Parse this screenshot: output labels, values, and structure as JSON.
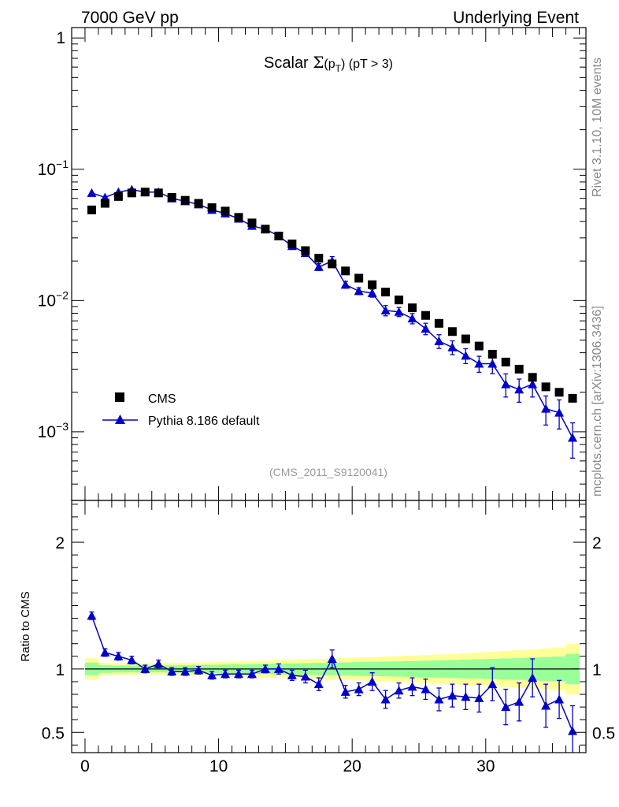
{
  "header": {
    "left": "7000 GeV pp",
    "right": "Underlying Event",
    "side_top": "Rivet 3.1.10,  10M events",
    "side_bottom": "mcplots.cern.ch [arXiv:1306.3436]"
  },
  "chart_data": [
    {
      "type": "scatter",
      "title": "Scalar Σ(p_T) (pT > 3)",
      "title_parts": {
        "main": "Scalar ",
        "sigma": "Σ",
        "open": "(p",
        "sub": "T",
        "close": ")",
        "cut": " (pT >  3)"
      },
      "watermark": "(CMS_2011_S9120041)",
      "yscale": "log",
      "xlim": [
        -1,
        37.5
      ],
      "ylim": [
        0.0003,
        1.2
      ],
      "y_ticks": [
        {
          "v": 1,
          "label": "1"
        },
        {
          "v": 0.1,
          "label": "10",
          "exp": "−1"
        },
        {
          "v": 0.01,
          "label": "10",
          "exp": "−2"
        },
        {
          "v": 0.001,
          "label": "10",
          "exp": "−3"
        }
      ],
      "legend": {
        "position": "bottom-left",
        "entries": [
          "CMS",
          "Pythia 8.186 default"
        ]
      },
      "series": [
        {
          "name": "CMS",
          "color": "#000000",
          "marker": "square",
          "x": [
            0.5,
            1.5,
            2.5,
            3.5,
            4.5,
            5.5,
            6.5,
            7.5,
            8.5,
            9.5,
            10.5,
            11.5,
            12.5,
            13.5,
            14.5,
            15.5,
            16.5,
            17.5,
            18.5,
            19.5,
            20.5,
            21.5,
            22.5,
            23.5,
            24.5,
            25.5,
            26.5,
            27.5,
            28.5,
            29.5,
            30.5,
            31.5,
            32.5,
            33.5,
            34.5,
            35.5,
            36.5
          ],
          "y": [
            0.049,
            0.055,
            0.062,
            0.066,
            0.067,
            0.066,
            0.061,
            0.058,
            0.055,
            0.051,
            0.048,
            0.043,
            0.039,
            0.035,
            0.031,
            0.027,
            0.024,
            0.021,
            0.019,
            0.0168,
            0.0148,
            0.0132,
            0.0116,
            0.0101,
            0.0088,
            0.0077,
            0.0067,
            0.0058,
            0.0051,
            0.0045,
            0.0039,
            0.0034,
            0.003,
            0.0026,
            0.0022,
            0.002,
            0.0018
          ]
        },
        {
          "name": "Pythia 8.186 default",
          "color": "#0000cc",
          "marker": "triangle",
          "x": [
            0.5,
            1.5,
            2.5,
            3.5,
            4.5,
            5.5,
            6.5,
            7.5,
            8.5,
            9.5,
            10.5,
            11.5,
            12.5,
            13.5,
            14.5,
            15.5,
            16.5,
            17.5,
            18.5,
            19.5,
            20.5,
            21.5,
            22.5,
            23.5,
            24.5,
            25.5,
            26.5,
            27.5,
            28.5,
            29.5,
            30.5,
            31.5,
            32.5,
            33.5,
            34.5,
            35.5,
            36.5
          ],
          "y": [
            0.066,
            0.061,
            0.067,
            0.07,
            0.067,
            0.067,
            0.06,
            0.057,
            0.054,
            0.049,
            0.046,
            0.042,
            0.037,
            0.035,
            0.031,
            0.026,
            0.023,
            0.018,
            0.02,
            0.0132,
            0.0118,
            0.0114,
            0.0084,
            0.0082,
            0.0073,
            0.0061,
            0.0049,
            0.0044,
            0.0038,
            0.0033,
            0.0033,
            0.0023,
            0.0021,
            0.0023,
            0.0015,
            0.0014,
            0.0009
          ],
          "err_frac": [
            0.03,
            0.03,
            0.03,
            0.03,
            0.03,
            0.03,
            0.03,
            0.03,
            0.03,
            0.03,
            0.03,
            0.03,
            0.03,
            0.03,
            0.03,
            0.04,
            0.05,
            0.06,
            0.08,
            0.06,
            0.06,
            0.07,
            0.09,
            0.08,
            0.09,
            0.1,
            0.12,
            0.12,
            0.13,
            0.14,
            0.16,
            0.2,
            0.2,
            0.2,
            0.25,
            0.25,
            0.3
          ]
        }
      ]
    },
    {
      "type": "line",
      "ylabel": "Ratio to CMS",
      "xlim": [
        -1,
        37.5
      ],
      "ylim": [
        0.34,
        2.33
      ],
      "x_ticks": [
        0,
        10,
        20,
        30
      ],
      "y_ticks": [
        {
          "v": 2,
          "label": "2"
        },
        {
          "v": 1,
          "label": "1"
        },
        {
          "v": 0.5,
          "label": "0.5"
        }
      ],
      "bands": {
        "x_edges": [
          0,
          1,
          2,
          3,
          4,
          5,
          6,
          7,
          8,
          9,
          10,
          11,
          12,
          13,
          14,
          15,
          16,
          17,
          18,
          19,
          20,
          21,
          22,
          23,
          24,
          25,
          26,
          27,
          28,
          29,
          30,
          31,
          32,
          33,
          34,
          35,
          36,
          37
        ],
        "yellow_half_width": [
          0.085,
          0.05,
          0.048,
          0.046,
          0.045,
          0.045,
          0.047,
          0.05,
          0.052,
          0.055,
          0.058,
          0.06,
          0.063,
          0.066,
          0.07,
          0.073,
          0.077,
          0.08,
          0.083,
          0.087,
          0.09,
          0.094,
          0.098,
          0.102,
          0.106,
          0.11,
          0.115,
          0.12,
          0.125,
          0.13,
          0.136,
          0.142,
          0.148,
          0.155,
          0.162,
          0.17,
          0.2
        ],
        "green_half_width": [
          0.05,
          0.03,
          0.028,
          0.027,
          0.027,
          0.027,
          0.028,
          0.03,
          0.032,
          0.033,
          0.035,
          0.036,
          0.038,
          0.04,
          0.042,
          0.044,
          0.046,
          0.048,
          0.05,
          0.052,
          0.054,
          0.056,
          0.058,
          0.06,
          0.062,
          0.065,
          0.068,
          0.071,
          0.074,
          0.077,
          0.08,
          0.083,
          0.086,
          0.09,
          0.094,
          0.098,
          0.12
        ],
        "yellow_color": "#ffff99",
        "green_color": "#99ff99"
      },
      "series": [
        {
          "name": "Pythia 8.186 default",
          "color": "#0000cc",
          "x": [
            0.5,
            1.5,
            2.5,
            3.5,
            4.5,
            5.5,
            6.5,
            7.5,
            8.5,
            9.5,
            10.5,
            11.5,
            12.5,
            13.5,
            14.5,
            15.5,
            16.5,
            17.5,
            18.5,
            19.5,
            20.5,
            21.5,
            22.5,
            23.5,
            24.5,
            25.5,
            26.5,
            27.5,
            28.5,
            29.5,
            30.5,
            31.5,
            32.5,
            33.5,
            34.5,
            35.5,
            36.5
          ],
          "y": [
            1.42,
            1.13,
            1.1,
            1.07,
            1.0,
            1.04,
            0.98,
            0.98,
            0.99,
            0.95,
            0.96,
            0.96,
            0.96,
            1.0,
            1.0,
            0.95,
            0.94,
            0.88,
            1.08,
            0.82,
            0.84,
            0.9,
            0.76,
            0.83,
            0.86,
            0.84,
            0.76,
            0.79,
            0.78,
            0.77,
            0.88,
            0.7,
            0.74,
            0.93,
            0.71,
            0.76,
            0.51
          ],
          "err": [
            0.03,
            0.03,
            0.03,
            0.03,
            0.03,
            0.03,
            0.03,
            0.03,
            0.03,
            0.03,
            0.03,
            0.03,
            0.03,
            0.03,
            0.04,
            0.04,
            0.05,
            0.05,
            0.07,
            0.05,
            0.05,
            0.07,
            0.07,
            0.06,
            0.07,
            0.08,
            0.09,
            0.09,
            0.1,
            0.11,
            0.13,
            0.14,
            0.15,
            0.15,
            0.17,
            0.15,
            0.2
          ]
        }
      ]
    }
  ]
}
